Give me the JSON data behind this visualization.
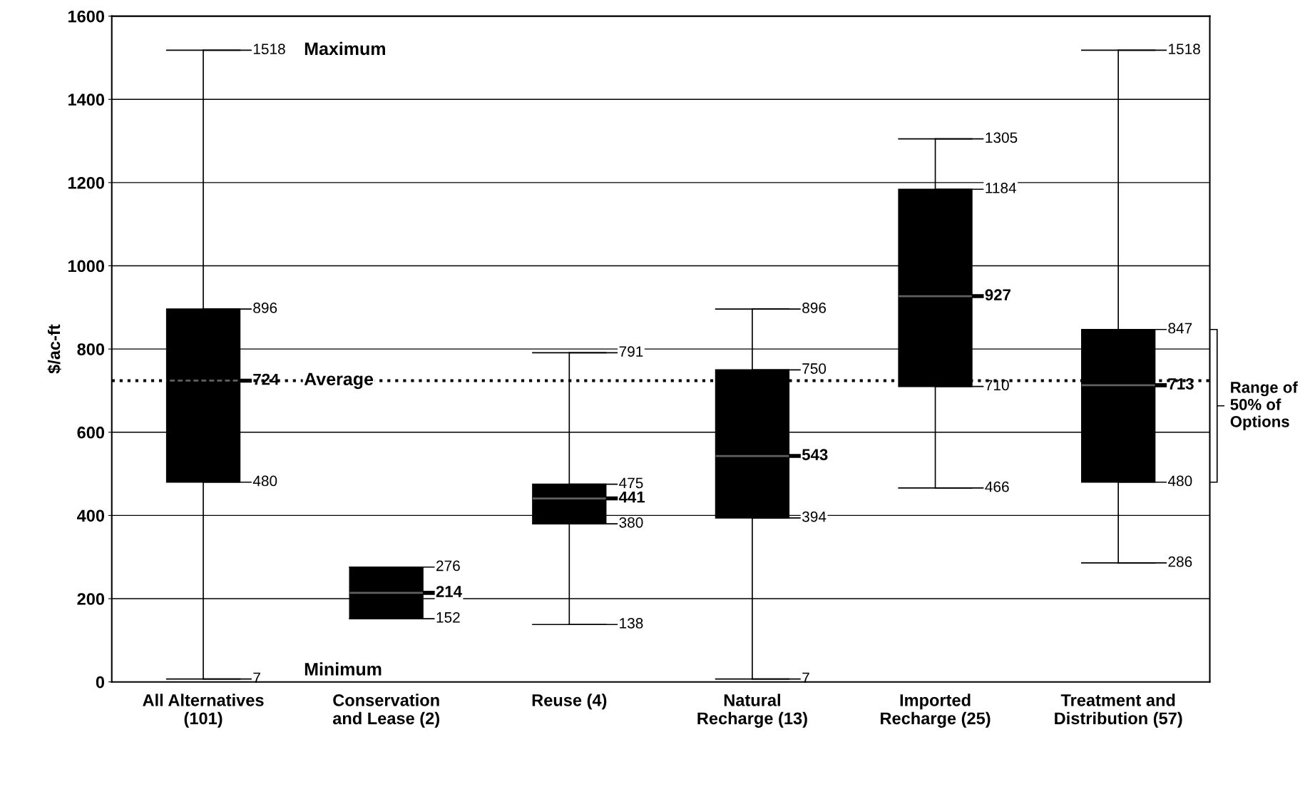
{
  "chart_data": {
    "type": "box",
    "ylabel": "$/ac-ft",
    "categories": [
      "All Alternatives\n(101)",
      "Conservation\nand Lease (2)",
      "Reuse (4)",
      "Natural\nRecharge (13)",
      "Imported\nRecharge (25)",
      "Treatment and\nDistribution (57)"
    ],
    "boxes": [
      {
        "low": 7,
        "q1": 480,
        "median": 724,
        "q3": 896,
        "high": 1518
      },
      {
        "low": 152,
        "q1": 152,
        "median": 214,
        "q3": 276,
        "high": 276
      },
      {
        "low": 138,
        "q1": 380,
        "median": 441,
        "q3": 475,
        "high": 791
      },
      {
        "low": 7,
        "q1": 394,
        "median": 543,
        "q3": 750,
        "high": 896
      },
      {
        "low": 466,
        "q1": 710,
        "median": 927,
        "q3": 1184,
        "high": 1305
      },
      {
        "low": 286,
        "q1": 480,
        "median": 713,
        "q3": 847,
        "high": 1518
      }
    ],
    "ylim": [
      0,
      1600
    ],
    "yticks": [
      0,
      200,
      400,
      600,
      800,
      1000,
      1200,
      1400,
      1600
    ],
    "grid": "y",
    "ref_lines": [
      {
        "axis": "y",
        "value": 724,
        "label": "Average",
        "line_style": "dotted",
        "color": "#000000"
      }
    ],
    "annotations": [
      "Maximum",
      "Minimum",
      "Range of\n50% of\nOptions",
      "1518",
      "896",
      "724",
      "480",
      "7",
      "276",
      "214",
      "152",
      "791",
      "475",
      "441",
      "380",
      "138",
      "896",
      "750",
      "543",
      "394",
      "7",
      "1305",
      "1184",
      "927",
      "710",
      "466",
      "1518",
      "847",
      "713",
      "480",
      "286"
    ]
  }
}
